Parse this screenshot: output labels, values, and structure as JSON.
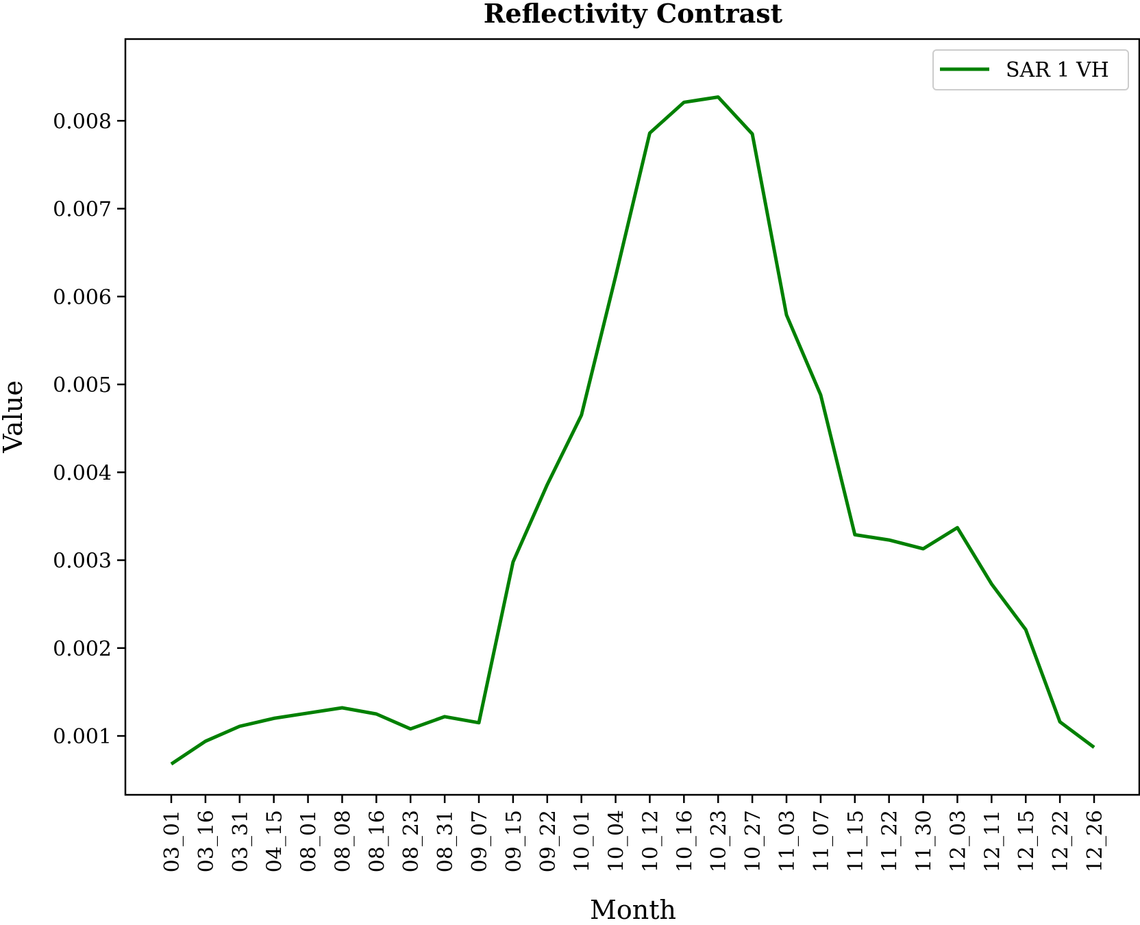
{
  "chart_data": {
    "type": "line",
    "title": "Reflectivity Contrast",
    "xlabel": "Month",
    "ylabel": "Value",
    "categories": [
      "03_01",
      "03_16",
      "03_31",
      "04_15",
      "08_01",
      "08_08",
      "08_16",
      "08_23",
      "08_31",
      "09_07",
      "09_15",
      "09_22",
      "10_01",
      "10_04",
      "10_12",
      "10_16",
      "10_23",
      "10_27",
      "11_03",
      "11_07",
      "11_15",
      "11_22",
      "11_30",
      "12_03",
      "12_11",
      "12_15",
      "12_22",
      "12_26"
    ],
    "series": [
      {
        "name": "SAR 1 VH",
        "color": "#008000",
        "values": [
          0.00068,
          0.00094,
          0.00111,
          0.0012,
          0.00126,
          0.00132,
          0.00125,
          0.00108,
          0.00122,
          0.00115,
          0.00298,
          0.00386,
          0.00465,
          0.00623,
          0.00786,
          0.00821,
          0.00827,
          0.00785,
          0.00579,
          0.00488,
          0.00329,
          0.00323,
          0.00313,
          0.00337,
          0.00273,
          0.00221,
          0.00116,
          0.00087
        ]
      }
    ],
    "yticks": [
      "0.001",
      "0.002",
      "0.003",
      "0.004",
      "0.005",
      "0.006",
      "0.007",
      "0.008"
    ],
    "ylim": [
      0.00033,
      0.00893
    ],
    "grid": false,
    "legend": "top-right"
  }
}
